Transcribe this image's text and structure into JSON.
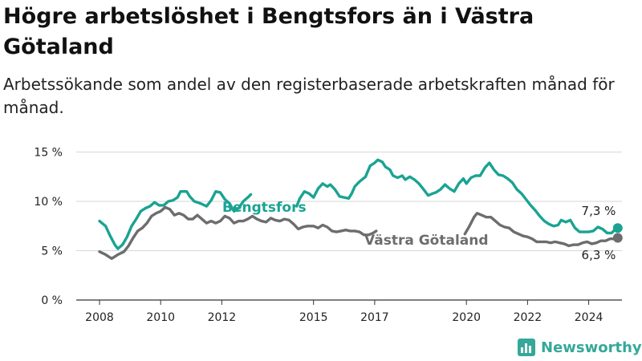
{
  "title": "Högre arbetslöshet i Bengtsfors än i Västra Götaland",
  "subtitle": "Arbetssökande som andel av den registerbaserade arbetskraften månad för månad.",
  "brand": "Newsworthy",
  "colors": {
    "bengtsfors": "#1aa392",
    "vastra_gotaland": "#6d6d70",
    "brand": "#35a89a"
  },
  "chart_data": {
    "type": "line",
    "title": "Högre arbetslöshet i Bengtsfors än i Västra Götaland",
    "subtitle": "Arbetssökande som andel av den registerbaserade arbetskraften månad för månad.",
    "x_ticks": [
      "2008",
      "2010",
      "2012",
      "2015",
      "2017",
      "2020",
      "2022",
      "2024"
    ],
    "y_ticks": [
      "0 %",
      "5 %",
      "10 %",
      "15 %"
    ],
    "ylim": [
      0,
      15
    ],
    "grid": "horizontal",
    "end_labels": {
      "bengtsfors": "7,3 %",
      "vastra_gotaland": "6,3 %"
    },
    "series": [
      {
        "name": "Bengtsfors",
        "segments": [
          [
            [
              2008.0,
              8.0
            ],
            [
              2008.2,
              7.5
            ],
            [
              2008.35,
              6.5
            ],
            [
              2008.5,
              5.6
            ],
            [
              2008.6,
              5.2
            ],
            [
              2008.75,
              5.6
            ],
            [
              2008.9,
              6.4
            ],
            [
              2009.05,
              7.5
            ],
            [
              2009.2,
              8.2
            ],
            [
              2009.35,
              9.0
            ],
            [
              2009.5,
              9.3
            ],
            [
              2009.65,
              9.5
            ],
            [
              2009.8,
              9.9
            ],
            [
              2009.95,
              9.6
            ],
            [
              2010.1,
              9.6
            ],
            [
              2010.25,
              10.0
            ],
            [
              2010.4,
              10.1
            ],
            [
              2010.55,
              10.4
            ],
            [
              2010.65,
              11.0
            ],
            [
              2010.85,
              11.0
            ],
            [
              2010.95,
              10.5
            ],
            [
              2011.1,
              10.0
            ],
            [
              2011.3,
              9.8
            ],
            [
              2011.5,
              9.5
            ],
            [
              2011.65,
              10.1
            ],
            [
              2011.8,
              11.0
            ],
            [
              2011.95,
              10.9
            ],
            [
              2012.1,
              10.2
            ],
            [
              2012.25,
              9.8
            ],
            [
              2012.4,
              9.0
            ],
            [
              2012.55,
              9.3
            ],
            [
              2012.7,
              10.0
            ],
            [
              2012.85,
              10.4
            ],
            [
              2012.95,
              10.7
            ]
          ],
          [
            [
              2014.45,
              9.5
            ],
            [
              2014.55,
              10.3
            ],
            [
              2014.7,
              11.0
            ],
            [
              2014.85,
              10.8
            ],
            [
              2015.0,
              10.4
            ],
            [
              2015.15,
              11.3
            ],
            [
              2015.3,
              11.8
            ],
            [
              2015.45,
              11.5
            ],
            [
              2015.55,
              11.7
            ],
            [
              2015.7,
              11.2
            ],
            [
              2015.85,
              10.5
            ],
            [
              2016.0,
              10.4
            ],
            [
              2016.15,
              10.3
            ],
            [
              2016.25,
              10.8
            ],
            [
              2016.35,
              11.5
            ],
            [
              2016.5,
              12.0
            ],
            [
              2016.7,
              12.5
            ],
            [
              2016.85,
              13.6
            ],
            [
              2017.0,
              13.9
            ],
            [
              2017.1,
              14.2
            ],
            [
              2017.25,
              14.0
            ],
            [
              2017.35,
              13.5
            ],
            [
              2017.5,
              13.2
            ],
            [
              2017.6,
              12.6
            ],
            [
              2017.75,
              12.4
            ],
            [
              2017.9,
              12.6
            ],
            [
              2018.0,
              12.2
            ],
            [
              2018.15,
              12.5
            ],
            [
              2018.3,
              12.2
            ],
            [
              2018.45,
              11.8
            ],
            [
              2018.6,
              11.2
            ],
            [
              2018.75,
              10.6
            ],
            [
              2018.9,
              10.8
            ],
            [
              2019.0,
              10.9
            ],
            [
              2019.15,
              11.2
            ],
            [
              2019.3,
              11.7
            ],
            [
              2019.45,
              11.3
            ],
            [
              2019.6,
              11.0
            ],
            [
              2019.75,
              11.8
            ],
            [
              2019.9,
              12.3
            ],
            [
              2020.0,
              11.8
            ],
            [
              2020.15,
              12.4
            ],
            [
              2020.3,
              12.6
            ],
            [
              2020.45,
              12.6
            ],
            [
              2020.6,
              13.4
            ],
            [
              2020.75,
              13.9
            ],
            [
              2020.9,
              13.2
            ],
            [
              2021.05,
              12.7
            ],
            [
              2021.2,
              12.6
            ],
            [
              2021.35,
              12.3
            ],
            [
              2021.5,
              11.9
            ],
            [
              2021.65,
              11.2
            ],
            [
              2021.8,
              10.8
            ],
            [
              2021.95,
              10.2
            ],
            [
              2022.1,
              9.6
            ],
            [
              2022.25,
              9.1
            ],
            [
              2022.4,
              8.5
            ],
            [
              2022.55,
              8.0
            ],
            [
              2022.7,
              7.7
            ],
            [
              2022.85,
              7.5
            ],
            [
              2023.0,
              7.6
            ],
            [
              2023.1,
              8.1
            ],
            [
              2023.25,
              7.9
            ],
            [
              2023.4,
              8.1
            ],
            [
              2023.55,
              7.3
            ],
            [
              2023.7,
              6.9
            ],
            [
              2023.85,
              6.9
            ],
            [
              2024.0,
              6.9
            ],
            [
              2024.15,
              7.0
            ],
            [
              2024.3,
              7.4
            ],
            [
              2024.45,
              7.2
            ],
            [
              2024.6,
              6.8
            ],
            [
              2024.75,
              6.8
            ],
            [
              2024.88,
              7.2
            ],
            [
              2024.95,
              7.3
            ]
          ]
        ]
      },
      {
        "name": "Västra Götaland",
        "segments": [
          [
            [
              2008.0,
              4.9
            ],
            [
              2008.2,
              4.6
            ],
            [
              2008.4,
              4.2
            ],
            [
              2008.6,
              4.6
            ],
            [
              2008.8,
              4.9
            ],
            [
              2008.95,
              5.5
            ],
            [
              2009.1,
              6.3
            ],
            [
              2009.25,
              7.0
            ],
            [
              2009.4,
              7.3
            ],
            [
              2009.55,
              7.8
            ],
            [
              2009.7,
              8.5
            ],
            [
              2009.85,
              8.8
            ],
            [
              2010.0,
              9.0
            ],
            [
              2010.15,
              9.4
            ],
            [
              2010.3,
              9.2
            ],
            [
              2010.45,
              8.6
            ],
            [
              2010.6,
              8.8
            ],
            [
              2010.75,
              8.6
            ],
            [
              2010.9,
              8.2
            ],
            [
              2011.05,
              8.2
            ],
            [
              2011.2,
              8.6
            ],
            [
              2011.35,
              8.2
            ],
            [
              2011.5,
              7.8
            ],
            [
              2011.65,
              8.0
            ],
            [
              2011.8,
              7.8
            ],
            [
              2011.95,
              8.0
            ],
            [
              2012.1,
              8.5
            ],
            [
              2012.25,
              8.3
            ],
            [
              2012.4,
              7.8
            ],
            [
              2012.55,
              8.0
            ],
            [
              2012.7,
              8.0
            ],
            [
              2012.85,
              8.2
            ],
            [
              2013.0,
              8.5
            ],
            [
              2013.15,
              8.2
            ],
            [
              2013.3,
              8.0
            ],
            [
              2013.45,
              7.9
            ],
            [
              2013.6,
              8.3
            ],
            [
              2013.75,
              8.1
            ],
            [
              2013.9,
              8.0
            ],
            [
              2014.05,
              8.2
            ],
            [
              2014.2,
              8.1
            ],
            [
              2014.35,
              7.7
            ],
            [
              2014.5,
              7.2
            ],
            [
              2014.65,
              7.4
            ],
            [
              2014.8,
              7.5
            ],
            [
              2015.0,
              7.5
            ],
            [
              2015.15,
              7.3
            ],
            [
              2015.3,
              7.6
            ],
            [
              2015.45,
              7.4
            ],
            [
              2015.6,
              7.0
            ],
            [
              2015.75,
              6.9
            ],
            [
              2015.9,
              7.0
            ],
            [
              2016.05,
              7.1
            ],
            [
              2016.2,
              7.0
            ],
            [
              2016.35,
              7.0
            ],
            [
              2016.5,
              6.9
            ],
            [
              2016.65,
              6.6
            ],
            [
              2016.8,
              6.6
            ],
            [
              2016.95,
              6.8
            ],
            [
              2017.05,
              7.0
            ]
          ],
          [
            [
              2019.95,
              6.7
            ],
            [
              2020.1,
              7.5
            ],
            [
              2020.25,
              8.4
            ],
            [
              2020.35,
              8.8
            ],
            [
              2020.5,
              8.6
            ],
            [
              2020.65,
              8.4
            ],
            [
              2020.8,
              8.4
            ],
            [
              2020.95,
              8.0
            ],
            [
              2021.1,
              7.6
            ],
            [
              2021.25,
              7.4
            ],
            [
              2021.4,
              7.3
            ],
            [
              2021.55,
              6.9
            ],
            [
              2021.7,
              6.7
            ],
            [
              2021.85,
              6.5
            ],
            [
              2022.0,
              6.4
            ],
            [
              2022.15,
              6.2
            ],
            [
              2022.3,
              5.9
            ],
            [
              2022.45,
              5.9
            ],
            [
              2022.6,
              5.9
            ],
            [
              2022.75,
              5.8
            ],
            [
              2022.9,
              5.9
            ],
            [
              2023.05,
              5.8
            ],
            [
              2023.2,
              5.7
            ],
            [
              2023.35,
              5.5
            ],
            [
              2023.5,
              5.6
            ],
            [
              2023.65,
              5.6
            ],
            [
              2023.8,
              5.8
            ],
            [
              2023.95,
              5.9
            ],
            [
              2024.1,
              5.7
            ],
            [
              2024.25,
              5.8
            ],
            [
              2024.4,
              6.0
            ],
            [
              2024.55,
              6.0
            ],
            [
              2024.7,
              6.2
            ],
            [
              2024.85,
              6.2
            ],
            [
              2024.95,
              6.3
            ]
          ]
        ]
      }
    ]
  }
}
